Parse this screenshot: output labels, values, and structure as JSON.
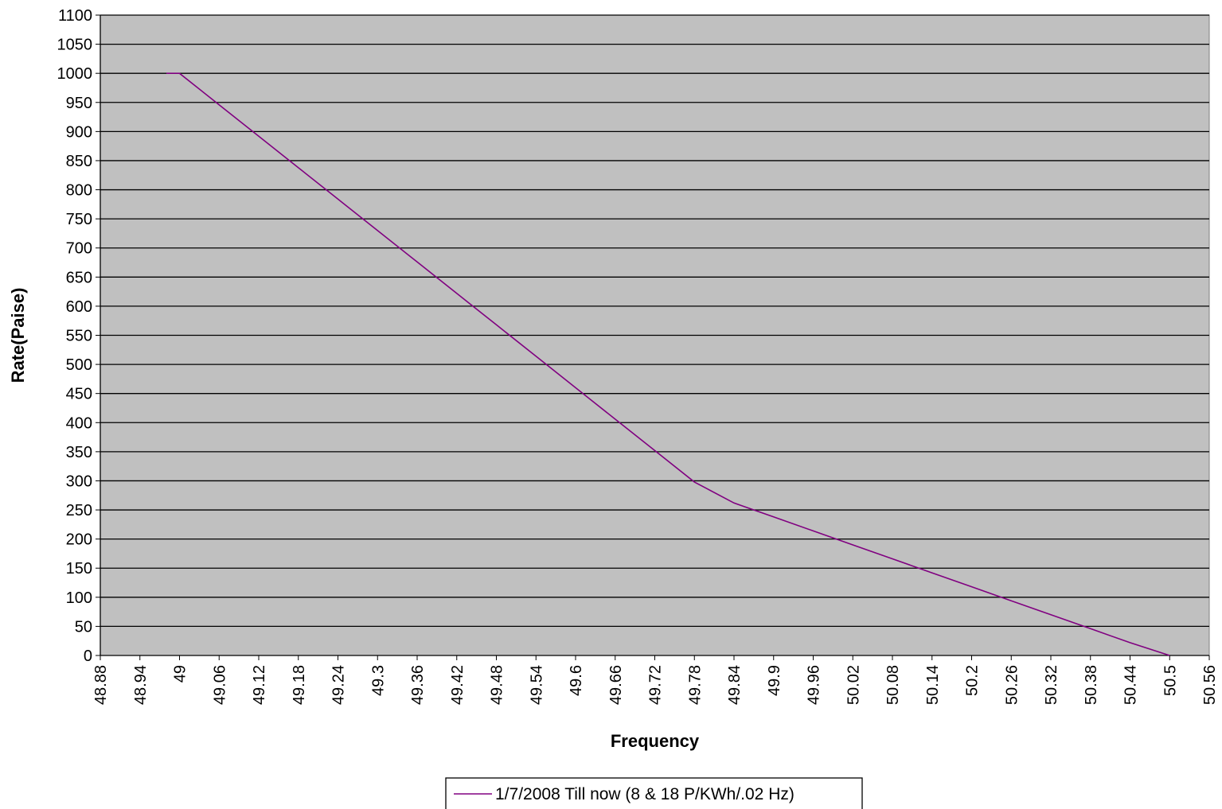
{
  "chart_data": {
    "type": "line",
    "title": "",
    "xlabel": "Frequency",
    "ylabel": "Rate(Paise)",
    "xlim": [
      48.88,
      50.56
    ],
    "ylim": [
      0,
      1100
    ],
    "x_ticks": [
      "48.88",
      "48.94",
      "49",
      "49.06",
      "49.12",
      "49.18",
      "49.24",
      "49.3",
      "49.36",
      "49.42",
      "49.48",
      "49.54",
      "49.6",
      "49.66",
      "49.72",
      "49.78",
      "49.84",
      "49.9",
      "49.96",
      "50.02",
      "50.08",
      "50.14",
      "50.2",
      "50.26",
      "50.32",
      "50.38",
      "50.44",
      "50.5",
      "50.56"
    ],
    "y_ticks": [
      "0",
      "50",
      "100",
      "150",
      "200",
      "250",
      "300",
      "350",
      "400",
      "450",
      "500",
      "550",
      "600",
      "650",
      "700",
      "750",
      "800",
      "850",
      "900",
      "950",
      "1000",
      "1050",
      "1100"
    ],
    "grid": "horizontal",
    "plot_background": "#c0c0c0",
    "legend": "bottom-center",
    "series": [
      {
        "name": "1/7/2008 Till now (8 & 18 P/KWh/.02 Hz)",
        "color": "#800080",
        "x": [
          48.98,
          49.0,
          49.06,
          49.12,
          49.18,
          49.24,
          49.3,
          49.36,
          49.42,
          49.48,
          49.54,
          49.6,
          49.66,
          49.72,
          49.78,
          49.8,
          49.84,
          49.9,
          49.96,
          50.02,
          50.08,
          50.14,
          50.2,
          50.26,
          50.32,
          50.38,
          50.44,
          50.5
        ],
        "y": [
          1000,
          1000,
          946,
          892,
          838,
          784,
          730,
          676,
          622,
          568,
          514,
          460,
          406,
          352,
          298,
          286,
          262,
          238,
          214,
          190,
          166,
          142,
          118,
          94,
          70,
          46,
          22,
          0
        ]
      }
    ]
  }
}
